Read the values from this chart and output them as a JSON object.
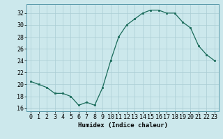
{
  "x": [
    0,
    1,
    2,
    3,
    4,
    5,
    6,
    7,
    8,
    9,
    10,
    11,
    12,
    13,
    14,
    15,
    16,
    17,
    18,
    19,
    20,
    21,
    22,
    23
  ],
  "y": [
    20.5,
    20.0,
    19.5,
    18.5,
    18.5,
    18.0,
    16.5,
    17.0,
    16.5,
    19.5,
    24.0,
    28.0,
    30.0,
    31.0,
    32.0,
    32.5,
    32.5,
    32.0,
    32.0,
    30.5,
    29.5,
    26.5,
    25.0,
    24.0
  ],
  "xlabel": "Humidex (Indice chaleur)",
  "line_color": "#1a6b5a",
  "marker_color": "#1a6b5a",
  "bg_color": "#cce8ec",
  "grid_color": "#aacdd4",
  "ylim": [
    15.5,
    33.5
  ],
  "xlim": [
    -0.5,
    23.5
  ],
  "yticks": [
    16,
    18,
    20,
    22,
    24,
    26,
    28,
    30,
    32
  ],
  "xticks": [
    0,
    1,
    2,
    3,
    4,
    5,
    6,
    7,
    8,
    9,
    10,
    11,
    12,
    13,
    14,
    15,
    16,
    17,
    18,
    19,
    20,
    21,
    22,
    23
  ],
  "xlabel_fontsize": 6.5,
  "tick_fontsize": 6.0,
  "spine_color": "#5a9aaa"
}
